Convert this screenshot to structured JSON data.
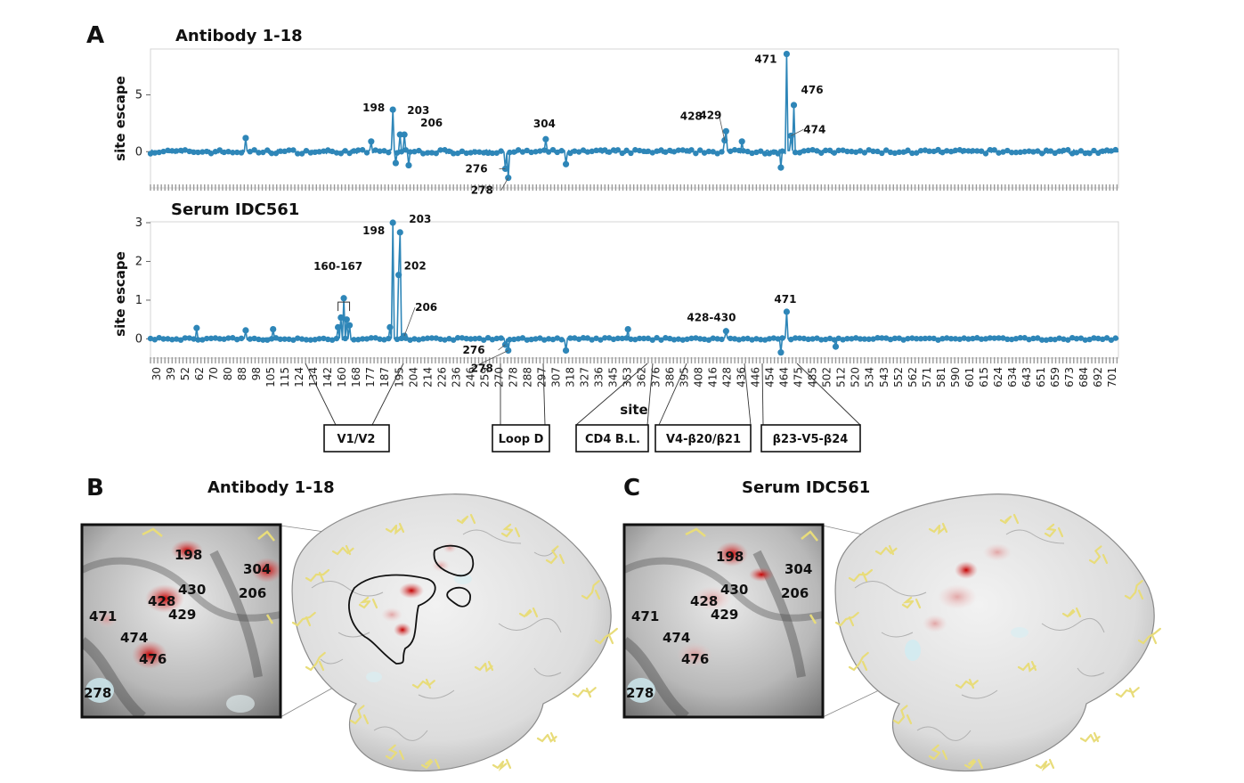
{
  "panels": {
    "a": "A",
    "b": "B",
    "c": "C"
  },
  "chart_data": [
    {
      "type": "line",
      "title": "Antibody 1-18",
      "ylabel": "site escape",
      "xlabel": "site",
      "ylim": [
        -2.8,
        8.8
      ],
      "yticks": [
        0,
        5
      ],
      "x_range": [
        30,
        701
      ],
      "peaks": [
        {
          "site": 96,
          "value": 1.2
        },
        {
          "site": 183,
          "value": 0.9
        },
        {
          "site": 198,
          "value": 3.7,
          "label": "198"
        },
        {
          "site": 200,
          "value": -1.0
        },
        {
          "site": 203,
          "value": 1.5,
          "label": "203"
        },
        {
          "site": 206,
          "value": 1.5,
          "label": "206"
        },
        {
          "site": 209,
          "value": -1.2
        },
        {
          "site": 276,
          "value": -1.5,
          "label": "276"
        },
        {
          "site": 278,
          "value": -2.3,
          "label": "278"
        },
        {
          "site": 304,
          "value": 1.1,
          "label": "304"
        },
        {
          "site": 318,
          "value": -1.1
        },
        {
          "site": 428,
          "value": 1.0,
          "label": "428"
        },
        {
          "site": 429,
          "value": 1.8,
          "label": "429"
        },
        {
          "site": 440,
          "value": 0.9
        },
        {
          "site": 467,
          "value": -1.4
        },
        {
          "site": 471,
          "value": 8.6,
          "label": "471"
        },
        {
          "site": 474,
          "value": 1.4,
          "label": "474"
        },
        {
          "site": 476,
          "value": 4.1,
          "label": "476"
        }
      ]
    },
    {
      "type": "line",
      "title": "Serum IDC561",
      "ylabel": "site escape",
      "xlabel": "site",
      "ylim": [
        -0.45,
        3.0
      ],
      "yticks": [
        0,
        1,
        2,
        3
      ],
      "x_range": [
        30,
        701
      ],
      "peaks": [
        {
          "site": 62,
          "value": 0.28
        },
        {
          "site": 96,
          "value": 0.22
        },
        {
          "site": 115,
          "value": 0.25
        },
        {
          "site": 160,
          "value": 0.3
        },
        {
          "site": 162,
          "value": 0.55
        },
        {
          "site": 164,
          "value": 1.05,
          "label": "160-167"
        },
        {
          "site": 166,
          "value": 0.5
        },
        {
          "site": 168,
          "value": 0.35
        },
        {
          "site": 196,
          "value": 0.3
        },
        {
          "site": 198,
          "value": 3.0,
          "label": "198"
        },
        {
          "site": 202,
          "value": 1.65,
          "label": "202"
        },
        {
          "site": 203,
          "value": 2.75,
          "label": "203"
        },
        {
          "site": 206,
          "value": 0.08,
          "label": "206"
        },
        {
          "site": 276,
          "value": -0.15,
          "label": "276"
        },
        {
          "site": 278,
          "value": -0.3,
          "label": "278"
        },
        {
          "site": 318,
          "value": -0.3
        },
        {
          "site": 361,
          "value": 0.25
        },
        {
          "site": 429,
          "value": 0.2,
          "label": "428-430"
        },
        {
          "site": 467,
          "value": -0.35
        },
        {
          "site": 471,
          "value": 0.7,
          "label": "471"
        },
        {
          "site": 505,
          "value": -0.2
        }
      ]
    }
  ],
  "x_ticks": [
    "30",
    "39",
    "52",
    "62",
    "70",
    "80",
    "88",
    "98",
    "105",
    "115",
    "124",
    "134",
    "142",
    "160",
    "168",
    "177",
    "187",
    "195",
    "204",
    "214",
    "226",
    "236",
    "246",
    "259",
    "270",
    "278",
    "288",
    "297",
    "307",
    "318",
    "327",
    "336",
    "345",
    "353",
    "362",
    "376",
    "386",
    "395",
    "408",
    "416",
    "428",
    "436",
    "446",
    "454",
    "464",
    "475",
    "485",
    "502",
    "512",
    "520",
    "534",
    "543",
    "552",
    "562",
    "571",
    "581",
    "590",
    "601",
    "615",
    "624",
    "634",
    "643",
    "651",
    "659",
    "673",
    "684",
    "692",
    "701"
  ],
  "x_axis_label": "site",
  "regions": [
    {
      "label": "V1/V2"
    },
    {
      "label": "Loop D"
    },
    {
      "label": "CD4 B.L."
    },
    {
      "label": "V4-β20/β21"
    },
    {
      "label": "β23-V5-β24"
    }
  ],
  "panel_b": {
    "title": "Antibody 1-18",
    "inset_labels": [
      "198",
      "304",
      "430",
      "206",
      "428",
      "429",
      "471",
      "474",
      "476",
      "278"
    ]
  },
  "panel_c": {
    "title": "Serum IDC561",
    "inset_labels": [
      "198",
      "304",
      "430",
      "206",
      "428",
      "429",
      "471",
      "474",
      "476",
      "278"
    ]
  },
  "colors": {
    "series": "#2e86b8",
    "axis": "#999999",
    "escape_red": "#cc1a1a",
    "glycan": "#e8dc7a"
  }
}
